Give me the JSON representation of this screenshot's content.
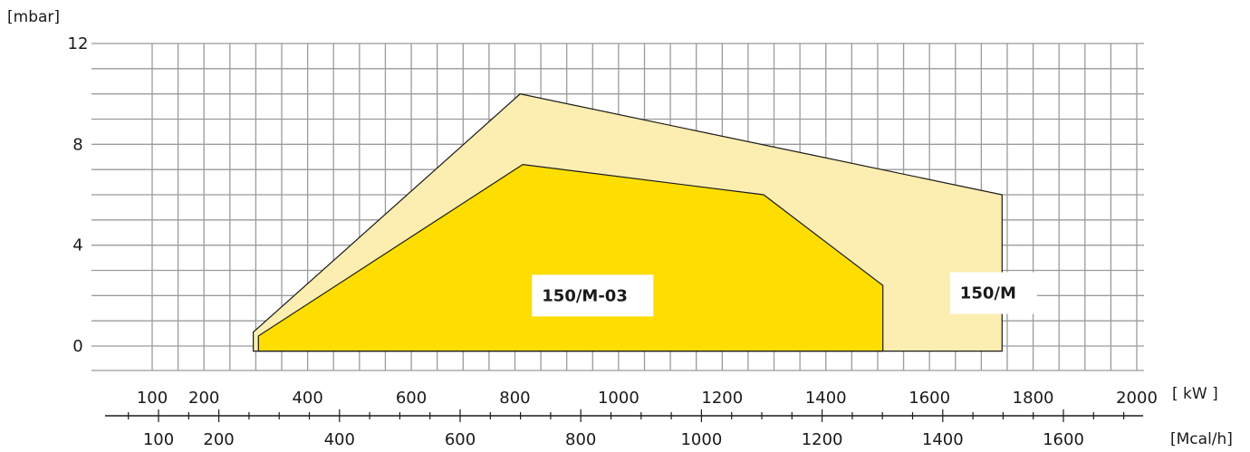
{
  "chart_data": {
    "type": "area",
    "title": "",
    "grid": true,
    "y_axis": {
      "unit": "[mbar]",
      "ylim": [
        -1,
        12
      ],
      "ticks": [
        0,
        4,
        8,
        12
      ]
    },
    "x_axis_kw": {
      "unit": "[ kW ]",
      "xlim": [
        0,
        2000
      ],
      "ticks": [
        100,
        200,
        400,
        600,
        800,
        1000,
        1200,
        1400,
        1600,
        1800,
        2000
      ]
    },
    "x_axis_mcal": {
      "unit": "[Mcal/h]",
      "ticks": [
        100,
        200,
        400,
        600,
        800,
        1000,
        1200,
        1400,
        1600
      ]
    },
    "series": [
      {
        "name": "150/M",
        "color": "#FCEDB0",
        "points": [
          [
            295,
            -0.2
          ],
          [
            295,
            0.55
          ],
          [
            810,
            10.0
          ],
          [
            1740,
            6.0
          ],
          [
            1740,
            -0.2
          ]
        ]
      },
      {
        "name": "150/M-03",
        "color": "#FDDE00",
        "points": [
          [
            305,
            -0.2
          ],
          [
            305,
            0.4
          ],
          [
            815,
            7.2
          ],
          [
            1280,
            6.0
          ],
          [
            1510,
            2.4
          ],
          [
            1510,
            -0.2
          ]
        ]
      }
    ],
    "annotations": [
      {
        "text": "150/M-03",
        "x": 950,
        "y": 2.0
      },
      {
        "text": "150/M",
        "x": 1720,
        "y": 2.1
      }
    ]
  }
}
